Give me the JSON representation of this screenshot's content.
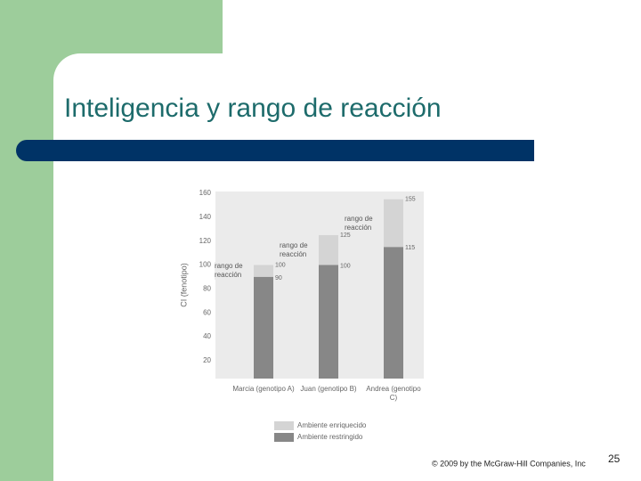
{
  "slide": {
    "title": "Inteligencia y rango de reacción",
    "footer": "© 2009 by the McGraw-Hill Companies, Inc",
    "page_number": 25
  },
  "chart_data": {
    "type": "bar",
    "y_label": "CI (fenotipo)",
    "categories": [
      "Marcia (genotipo A)",
      "Juan (genotipo B)",
      "Andrea (genotipo C)"
    ],
    "series": [
      {
        "name": "Ambiente enriquecido",
        "color": "#d4d4d4",
        "values": [
          100,
          125,
          155
        ]
      },
      {
        "name": "Ambiente restringido",
        "color": "#878787",
        "values": [
          90,
          100,
          115
        ]
      }
    ],
    "annotations": [
      "rango de reacción",
      "rango de reacción",
      "rango de reacción"
    ],
    "ylim": [
      5,
      160
    ],
    "yticks": [
      20,
      40,
      60,
      80,
      100,
      120,
      140,
      160
    ]
  }
}
